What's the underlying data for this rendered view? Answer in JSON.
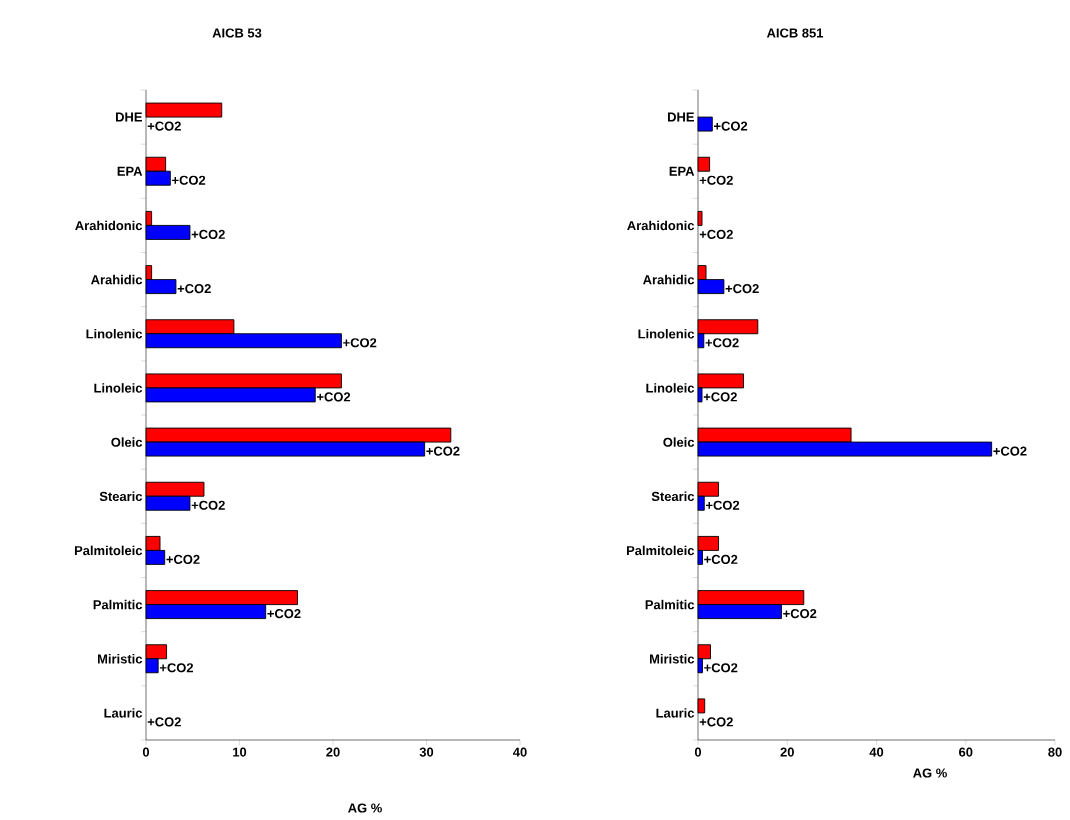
{
  "chart_data": [
    {
      "type": "bar",
      "orientation": "horizontal",
      "title": "AICB 53",
      "xlabel": "AG %",
      "categories": [
        "DHE",
        "EPA",
        "Arahidonic",
        "Arahidic",
        "Linolenic",
        "Linoleic",
        "Oleic",
        "Stearic",
        "Palmitoleic",
        "Palmitic",
        "Miristic",
        "Lauric"
      ],
      "series": [
        {
          "color": "#ff0000",
          "values": [
            8.1,
            2.1,
            0.6,
            0.6,
            9.4,
            20.9,
            32.6,
            6.2,
            1.5,
            16.2,
            2.2,
            null
          ]
        },
        {
          "name": "+CO2",
          "color": "#0000ff",
          "values": [
            null,
            2.6,
            4.7,
            3.2,
            20.9,
            18.1,
            29.8,
            4.7,
            2.0,
            12.8,
            1.3,
            null
          ]
        }
      ],
      "xlim": [
        0,
        40
      ],
      "xticks": [
        0,
        10,
        20,
        30,
        40
      ]
    },
    {
      "type": "bar",
      "orientation": "horizontal",
      "title": "AICB 851",
      "xlabel": "AG %",
      "categories": [
        "DHE",
        "EPA",
        "Arahidonic",
        "Arahidic",
        "Linolenic",
        "Linoleic",
        "Oleic",
        "Stearic",
        "Palmitoleic",
        "Palmitic",
        "Miristic",
        "Lauric"
      ],
      "series": [
        {
          "color": "#ff0000",
          "values": [
            null,
            2.6,
            0.9,
            1.8,
            13.4,
            10.2,
            34.3,
            4.6,
            4.6,
            23.7,
            2.8,
            1.5
          ]
        },
        {
          "name": "+CO2",
          "color": "#0000ff",
          "values": [
            3.2,
            null,
            null,
            5.8,
            1.3,
            0.9,
            65.8,
            1.4,
            1.0,
            18.7,
            1.0,
            null
          ]
        }
      ],
      "xlim": [
        0,
        80
      ],
      "xticks": [
        0,
        20,
        40,
        60,
        80
      ]
    }
  ]
}
